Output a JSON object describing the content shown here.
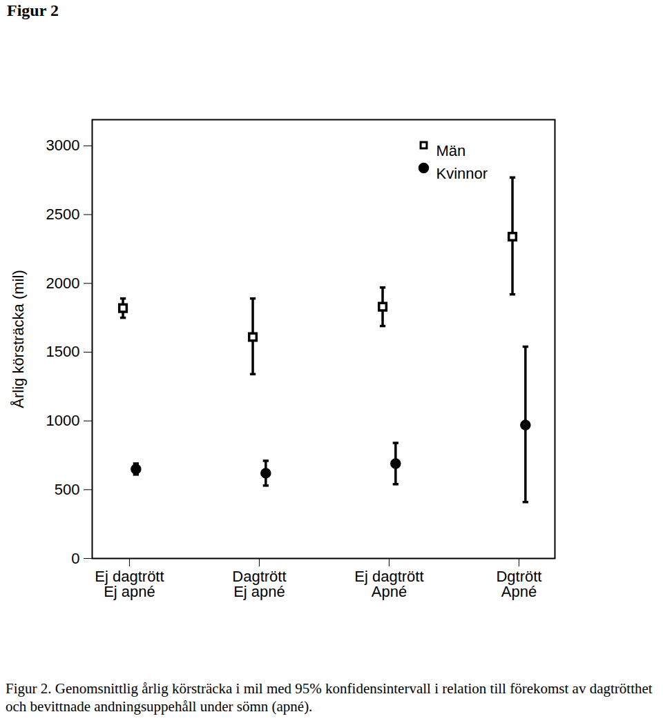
{
  "chart_data": {
    "type": "scatter",
    "title": "Figur 2",
    "caption": "Figur 2. Genomsnittlig årlig körsträcka i mil med 95% konfidensintervall i relation till förekomst av dagtrötthet och bevittnade andningsuppehåll under sömn (apné).",
    "y_label": "Årlig körsträcka (mil)",
    "categories": [
      "Ej dagtrött\nEj apné",
      "Dagtrött\nEj apné",
      "Ej dagtrött\nApné",
      "Dgtrött\nApné"
    ],
    "series": [
      {
        "name": "Män",
        "color": "#000000",
        "marker": "square",
        "values": [
          1820,
          1610,
          1830,
          2340
        ],
        "ci_low": [
          1750,
          1340,
          1690,
          1920
        ],
        "ci_high": [
          1890,
          1890,
          1970,
          2770
        ]
      },
      {
        "name": "Kvinnor",
        "color": "#000000",
        "marker": "circle",
        "values": [
          650,
          620,
          690,
          970
        ],
        "ci_low": [
          610,
          530,
          540,
          410
        ],
        "ci_high": [
          690,
          710,
          840,
          1540
        ]
      }
    ],
    "ylim": [
      0,
      3190
    ],
    "yticks": [
      0,
      500,
      1000,
      1500,
      2000,
      2500,
      3000
    ],
    "legend": "top-right",
    "grid": false
  }
}
